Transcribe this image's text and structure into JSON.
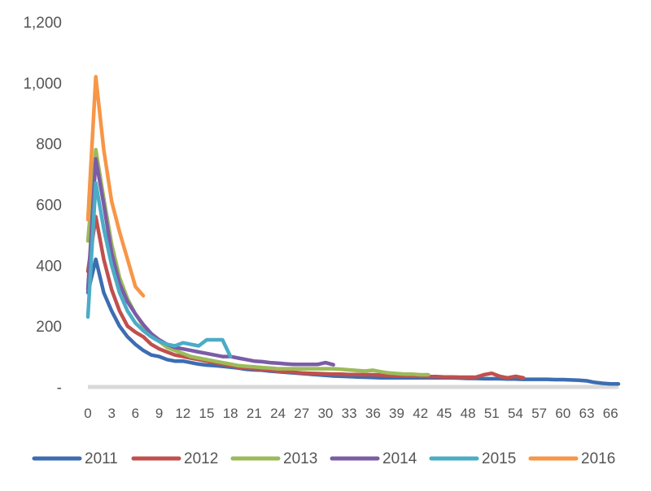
{
  "chart_data": {
    "type": "line",
    "title": "",
    "xlabel": "",
    "ylabel": "",
    "ylim": [
      0,
      1200
    ],
    "xlim": [
      0,
      67
    ],
    "y_ticks": [
      {
        "value": 0,
        "label": "-"
      },
      {
        "value": 200,
        "label": "200"
      },
      {
        "value": 400,
        "label": "400"
      },
      {
        "value": 600,
        "label": "600"
      },
      {
        "value": 800,
        "label": "800"
      },
      {
        "value": 1000,
        "label": "1,000"
      },
      {
        "value": 1200,
        "label": "1,200"
      }
    ],
    "x_ticks": [
      "0",
      "3",
      "6",
      "9",
      "12",
      "15",
      "18",
      "21",
      "24",
      "27",
      "30",
      "33",
      "36",
      "39",
      "42",
      "45",
      "48",
      "51",
      "54",
      "57",
      "60",
      "63",
      "66"
    ],
    "grid": false,
    "legend_position": "bottom",
    "series": [
      {
        "name": "2011",
        "color": "#3D6DB1",
        "x": [
          0,
          1,
          2,
          3,
          4,
          5,
          6,
          7,
          8,
          9,
          10,
          11,
          12,
          13,
          14,
          15,
          16,
          17,
          18,
          19,
          20,
          21,
          22,
          23,
          24,
          25,
          26,
          27,
          28,
          29,
          30,
          31,
          32,
          33,
          34,
          35,
          36,
          37,
          38,
          39,
          40,
          41,
          42,
          43,
          44,
          45,
          46,
          47,
          48,
          49,
          50,
          51,
          52,
          53,
          54,
          55,
          56,
          57,
          58,
          59,
          60,
          61,
          62,
          63,
          64,
          65,
          66,
          67
        ],
        "y": [
          310,
          420,
          310,
          250,
          200,
          165,
          140,
          120,
          105,
          100,
          90,
          85,
          85,
          80,
          75,
          72,
          70,
          68,
          65,
          62,
          58,
          56,
          55,
          52,
          50,
          48,
          46,
          44,
          42,
          40,
          38,
          36,
          35,
          34,
          33,
          32,
          31,
          30,
          30,
          30,
          30,
          30,
          30,
          30,
          30,
          30,
          30,
          29,
          28,
          28,
          27,
          27,
          27,
          26,
          26,
          25,
          25,
          25,
          25,
          24,
          24,
          23,
          22,
          20,
          15,
          12,
          10,
          10
        ]
      },
      {
        "name": "2012",
        "color": "#C0504D",
        "x": [
          0,
          1,
          2,
          3,
          4,
          5,
          6,
          7,
          8,
          9,
          10,
          11,
          12,
          13,
          14,
          15,
          16,
          17,
          18,
          19,
          20,
          21,
          22,
          23,
          24,
          25,
          26,
          27,
          28,
          29,
          30,
          31,
          32,
          33,
          34,
          35,
          36,
          37,
          38,
          39,
          40,
          41,
          42,
          43,
          44,
          45,
          46,
          47,
          48,
          49,
          50,
          51,
          52,
          53,
          54,
          55
        ],
        "y": [
          380,
          560,
          420,
          320,
          250,
          200,
          180,
          165,
          140,
          125,
          115,
          105,
          100,
          95,
          90,
          85,
          80,
          75,
          70,
          65,
          62,
          60,
          58,
          55,
          52,
          50,
          48,
          46,
          45,
          44,
          43,
          42,
          42,
          41,
          41,
          40,
          40,
          39,
          38,
          37,
          36,
          35,
          35,
          34,
          34,
          33,
          33,
          32,
          32,
          32,
          40,
          45,
          35,
          30,
          35,
          30
        ]
      },
      {
        "name": "2013",
        "color": "#9BBB59",
        "x": [
          0,
          1,
          2,
          3,
          4,
          5,
          6,
          7,
          8,
          9,
          10,
          11,
          12,
          13,
          14,
          15,
          16,
          17,
          18,
          19,
          20,
          21,
          22,
          23,
          24,
          25,
          26,
          27,
          28,
          29,
          30,
          31,
          32,
          33,
          34,
          35,
          36,
          37,
          38,
          39,
          40,
          41,
          42,
          43
        ],
        "y": [
          480,
          780,
          620,
          470,
          360,
          290,
          240,
          200,
          175,
          150,
          130,
          120,
          110,
          100,
          95,
          90,
          85,
          80,
          75,
          70,
          68,
          66,
          64,
          62,
          60,
          60,
          60,
          60,
          60,
          60,
          60,
          60,
          58,
          56,
          54,
          52,
          55,
          50,
          46,
          44,
          42,
          42,
          40,
          40
        ]
      },
      {
        "name": "2014",
        "color": "#7B5CA6",
        "x": [
          0,
          1,
          2,
          3,
          4,
          5,
          6,
          7,
          8,
          9,
          10,
          11,
          12,
          13,
          14,
          15,
          16,
          17,
          18,
          19,
          20,
          21,
          22,
          23,
          24,
          25,
          26,
          27,
          28,
          29,
          30,
          31
        ],
        "y": [
          320,
          750,
          600,
          440,
          340,
          280,
          240,
          205,
          175,
          155,
          140,
          130,
          125,
          120,
          115,
          110,
          105,
          100,
          100,
          95,
          90,
          85,
          83,
          80,
          78,
          76,
          74,
          74,
          74,
          74,
          80,
          73
        ]
      },
      {
        "name": "2015",
        "color": "#4BACC6",
        "x": [
          0,
          1,
          2,
          3,
          4,
          5,
          6,
          7,
          8,
          9,
          10,
          11,
          12,
          13,
          14,
          15,
          16,
          17,
          18
        ],
        "y": [
          230,
          670,
          520,
          400,
          310,
          250,
          210,
          185,
          165,
          150,
          140,
          135,
          145,
          140,
          135,
          155,
          155,
          155,
          100
        ]
      },
      {
        "name": "2016",
        "color": "#F79646",
        "x": [
          0,
          1,
          2,
          3,
          4,
          5,
          6,
          7
        ],
        "y": [
          550,
          1020,
          780,
          610,
          510,
          420,
          330,
          300
        ]
      }
    ]
  }
}
